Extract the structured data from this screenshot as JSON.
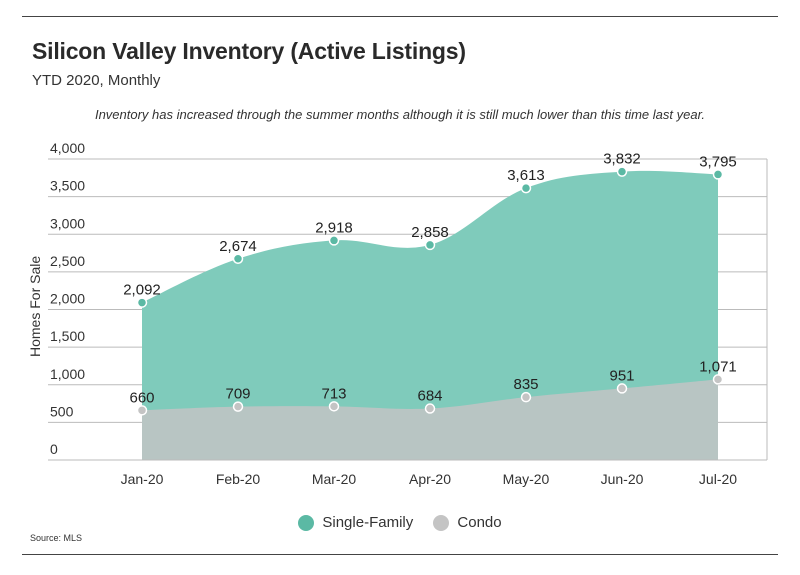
{
  "title": "Silicon Valley Inventory (Active Listings)",
  "subtitle": "YTD 2020, Monthly",
  "note": "Inventory has increased through the summer months although it is still much lower than this time last year.",
  "source": "Source: MLS",
  "colors": {
    "single_family": "#7fcbbb",
    "single_family_dot": "#5bb9a4",
    "condo": "#b8c5c3",
    "condo_dot": "#c4c4c4",
    "grid": "#bbbbbb"
  },
  "chart_data": {
    "type": "area",
    "categories": [
      "Jan-20",
      "Feb-20",
      "Mar-20",
      "Apr-20",
      "May-20",
      "Jun-20",
      "Jul-20"
    ],
    "series": [
      {
        "name": "Single-Family",
        "values": [
          2092,
          2674,
          2918,
          2858,
          3613,
          3832,
          3795
        ],
        "labels": [
          "2,092",
          "2,674",
          "2,918",
          "2,858",
          "3,613",
          "3,832",
          "3,795"
        ]
      },
      {
        "name": "Condo",
        "values": [
          660,
          709,
          713,
          684,
          835,
          951,
          1071
        ],
        "labels": [
          "660",
          "709",
          "713",
          "684",
          "835",
          "951",
          "1,071"
        ]
      }
    ],
    "ylabel": "Homes For Sale",
    "ylim": [
      0,
      4000
    ],
    "yticks": [
      0,
      500,
      1000,
      1500,
      2000,
      2500,
      3000,
      3500,
      4000
    ],
    "ytick_labels": [
      "0",
      "500",
      "1,000",
      "1,500",
      "2,000",
      "2,500",
      "3,000",
      "3,500",
      "4,000"
    ],
    "legend": [
      "Single-Family",
      "Condo"
    ],
    "grid": true
  }
}
